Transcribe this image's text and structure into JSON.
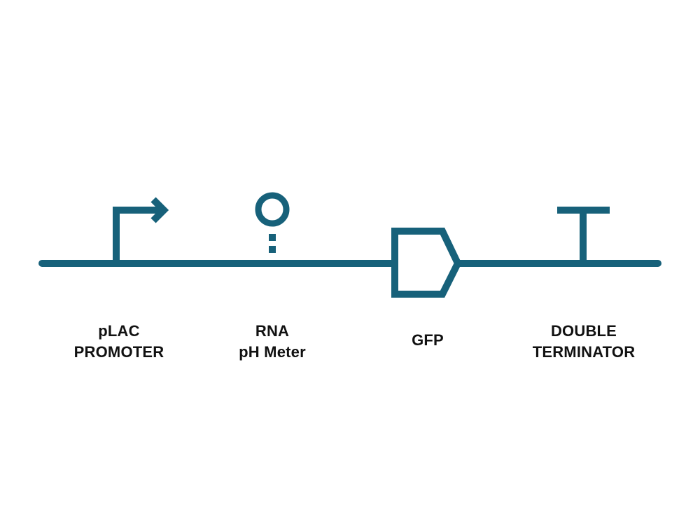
{
  "diagram": {
    "stroke_color": "#17617a",
    "text_color": "#111111",
    "parts": [
      {
        "type": "promoter",
        "icon": "promoter-arrow-icon",
        "label_lines": [
          "pLAC",
          "PROMOTER"
        ]
      },
      {
        "type": "rna-sensor",
        "icon": "rna-sensor-icon",
        "label_lines": [
          "RNA",
          "pH Meter"
        ]
      },
      {
        "type": "cds",
        "icon": "cds-pentagon-icon",
        "label_lines": [
          "GFP"
        ]
      },
      {
        "type": "terminator",
        "icon": "terminator-t-icon",
        "label_lines": [
          "DOUBLE",
          "TERMINATOR"
        ]
      }
    ]
  }
}
